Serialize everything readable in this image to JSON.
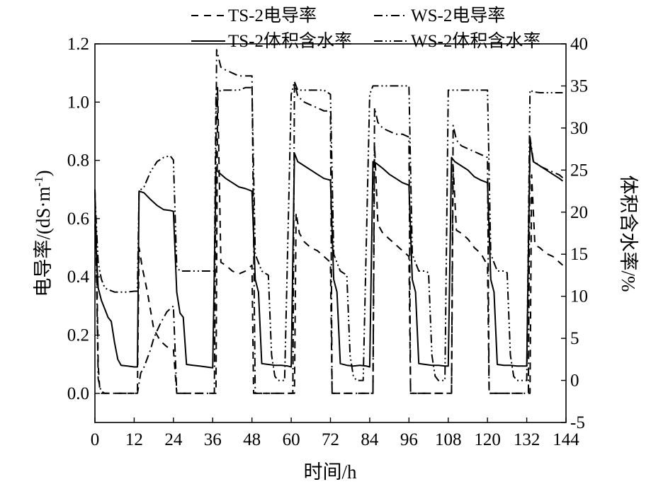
{
  "chart_data": {
    "type": "line",
    "xlabel": "时间/h",
    "ylabel_left": "电导率/(dS·m",
    "ylabel_left_sup": "-1",
    "ylabel_left_close": ")",
    "ylabel_right": "体积含水率/%",
    "xlim": [
      0,
      144
    ],
    "ylim_left": [
      -0.1,
      1.2
    ],
    "ylim_right": [
      -5,
      40
    ],
    "x_ticks": [
      0,
      12,
      24,
      36,
      48,
      60,
      72,
      84,
      96,
      108,
      120,
      132,
      144
    ],
    "x_tick_labels": [
      "0",
      "12",
      "24",
      "36",
      "48",
      "60",
      "72",
      "84",
      "96",
      "108",
      "120",
      "132",
      "144"
    ],
    "y_left_ticks": [
      0.0,
      0.2,
      0.4,
      0.6,
      0.8,
      1.0,
      1.2
    ],
    "y_left_tick_labels": [
      "0.0",
      "0.2",
      "0.4",
      "0.6",
      "0.8",
      "1.0",
      "1.2"
    ],
    "y_right_ticks": [
      -5,
      0,
      5,
      10,
      15,
      20,
      25,
      30,
      35,
      40
    ],
    "y_right_tick_labels": [
      "-5",
      "0",
      "5",
      "10",
      "15",
      "20",
      "25",
      "30",
      "35",
      "40"
    ],
    "grid": false,
    "legend_position": "top",
    "series": [
      {
        "name": "TS-2电导率",
        "style": "dashed",
        "axis": "left",
        "points": [
          [
            0,
            0.7
          ],
          [
            0.5,
            0.5
          ],
          [
            1,
            0.1
          ],
          [
            1.5,
            0.01
          ],
          [
            3,
            0.0
          ],
          [
            13,
            0.0
          ],
          [
            13.5,
            0.5
          ],
          [
            14.5,
            0.43
          ],
          [
            16,
            0.35
          ],
          [
            18,
            0.22
          ],
          [
            20,
            0.18
          ],
          [
            22,
            0.16
          ],
          [
            24,
            0.15
          ],
          [
            25,
            0.0
          ],
          [
            37,
            0.0
          ],
          [
            37.5,
            1.05
          ],
          [
            38.5,
            0.45
          ],
          [
            40,
            0.44
          ],
          [
            42,
            0.42
          ],
          [
            44,
            0.41
          ],
          [
            46,
            0.42
          ],
          [
            48,
            0.44
          ],
          [
            48.5,
            0.0
          ],
          [
            61,
            0.0
          ],
          [
            61.5,
            0.62
          ],
          [
            62.5,
            0.55
          ],
          [
            64,
            0.52
          ],
          [
            66,
            0.5
          ],
          [
            68,
            0.49
          ],
          [
            70,
            0.47
          ],
          [
            72,
            0.45
          ],
          [
            72.5,
            0.0
          ],
          [
            85,
            0.0
          ],
          [
            85.5,
            0.85
          ],
          [
            86.5,
            0.58
          ],
          [
            88,
            0.55
          ],
          [
            90,
            0.53
          ],
          [
            92,
            0.51
          ],
          [
            94,
            0.49
          ],
          [
            96,
            0.47
          ],
          [
            96.5,
            0.0
          ],
          [
            109,
            0.0
          ],
          [
            109.5,
            0.78
          ],
          [
            110.5,
            0.56
          ],
          [
            112,
            0.55
          ],
          [
            114,
            0.53
          ],
          [
            116,
            0.5
          ],
          [
            118,
            0.48
          ],
          [
            120,
            0.44
          ],
          [
            120.5,
            0.0
          ],
          [
            133,
            0.0
          ],
          [
            133.5,
            0.75
          ],
          [
            134.5,
            0.51
          ],
          [
            136,
            0.5
          ],
          [
            138,
            0.48
          ],
          [
            140,
            0.47
          ],
          [
            142,
            0.45
          ],
          [
            143,
            0.44
          ]
        ]
      },
      {
        "name": "WS-2电导率",
        "style": "dashdot",
        "axis": "left",
        "points": [
          [
            0,
            0.7
          ],
          [
            0.5,
            0.4
          ],
          [
            1,
            0.05
          ],
          [
            2,
            0.0
          ],
          [
            13,
            0.0
          ],
          [
            14,
            0.07
          ],
          [
            15,
            0.09
          ],
          [
            16,
            0.12
          ],
          [
            17,
            0.15
          ],
          [
            18,
            0.19
          ],
          [
            20,
            0.24
          ],
          [
            22,
            0.28
          ],
          [
            24,
            0.3
          ],
          [
            25,
            0.0
          ],
          [
            36.5,
            0.0
          ],
          [
            37.2,
            1.18
          ],
          [
            38.5,
            1.12
          ],
          [
            40,
            1.11
          ],
          [
            42,
            1.1
          ],
          [
            44,
            1.09
          ],
          [
            46,
            1.09
          ],
          [
            48,
            1.09
          ],
          [
            49,
            0.0
          ],
          [
            60.5,
            0.0
          ],
          [
            61,
            1.07
          ],
          [
            62,
            1.02
          ],
          [
            64,
            1.0
          ],
          [
            66,
            0.99
          ],
          [
            68,
            0.98
          ],
          [
            70,
            0.97
          ],
          [
            72,
            0.97
          ],
          [
            72.5,
            0.0
          ],
          [
            85,
            0.0
          ],
          [
            85.5,
            0.98
          ],
          [
            86.5,
            0.93
          ],
          [
            88,
            0.91
          ],
          [
            90,
            0.9
          ],
          [
            92,
            0.89
          ],
          [
            94,
            0.89
          ],
          [
            96,
            0.88
          ],
          [
            96.5,
            0.0
          ],
          [
            109,
            0.0
          ],
          [
            109.5,
            0.92
          ],
          [
            110.5,
            0.87
          ],
          [
            112,
            0.85
          ],
          [
            114,
            0.84
          ],
          [
            116,
            0.83
          ],
          [
            118,
            0.82
          ],
          [
            120,
            0.81
          ],
          [
            120.5,
            0.0
          ],
          [
            132.5,
            0.0
          ],
          [
            133,
            0.88
          ],
          [
            134,
            0.8
          ],
          [
            136,
            0.78
          ],
          [
            138,
            0.77
          ],
          [
            140,
            0.76
          ],
          [
            142,
            0.75
          ],
          [
            143,
            0.74
          ]
        ]
      },
      {
        "name": "TS-2体积含水率",
        "style": "solid",
        "axis": "right",
        "points": [
          [
            0,
            18.5
          ],
          [
            1,
            11.0
          ],
          [
            2,
            9.5
          ],
          [
            3,
            8.5
          ],
          [
            4,
            7.5
          ],
          [
            5,
            7.0
          ],
          [
            6,
            4.5
          ],
          [
            7,
            2.5
          ],
          [
            8,
            1.8
          ],
          [
            10,
            1.7
          ],
          [
            12,
            1.6
          ],
          [
            13,
            1.6
          ],
          [
            13.5,
            22.5
          ],
          [
            15,
            22.3
          ],
          [
            17,
            21.5
          ],
          [
            19,
            20.8
          ],
          [
            21,
            20.3
          ],
          [
            23,
            20.2
          ],
          [
            24,
            20.1
          ],
          [
            25,
            10.5
          ],
          [
            26,
            8.0
          ],
          [
            27,
            7.5
          ],
          [
            28,
            1.9
          ],
          [
            30,
            1.8
          ],
          [
            32,
            1.7
          ],
          [
            34,
            1.6
          ],
          [
            36,
            1.5
          ],
          [
            37,
            25.0
          ],
          [
            38.5,
            24.5
          ],
          [
            40,
            24.0
          ],
          [
            42,
            23.5
          ],
          [
            44,
            23.0
          ],
          [
            46,
            22.8
          ],
          [
            48,
            22.5
          ],
          [
            49,
            12.0
          ],
          [
            50,
            10.5
          ],
          [
            51,
            2.0
          ],
          [
            53,
            1.9
          ],
          [
            55,
            1.8
          ],
          [
            57,
            1.8
          ],
          [
            59,
            1.7
          ],
          [
            60,
            1.6
          ],
          [
            61,
            27.0
          ],
          [
            62,
            26.0
          ],
          [
            64,
            25.5
          ],
          [
            66,
            25.0
          ],
          [
            68,
            24.5
          ],
          [
            70,
            24.0
          ],
          [
            72,
            23.8
          ],
          [
            73,
            12.0
          ],
          [
            74,
            10.5
          ],
          [
            75,
            2.0
          ],
          [
            77,
            1.8
          ],
          [
            79,
            1.7
          ],
          [
            81,
            1.8
          ],
          [
            83,
            1.7
          ],
          [
            84,
            1.6
          ],
          [
            85,
            26.0
          ],
          [
            86,
            25.8
          ],
          [
            88,
            25.2
          ],
          [
            90,
            24.5
          ],
          [
            92,
            24.0
          ],
          [
            94,
            23.5
          ],
          [
            96,
            23.2
          ],
          [
            97,
            12.0
          ],
          [
            98,
            10.5
          ],
          [
            99,
            2.0
          ],
          [
            101,
            1.9
          ],
          [
            103,
            1.8
          ],
          [
            105,
            1.8
          ],
          [
            107,
            1.7
          ],
          [
            108,
            1.7
          ],
          [
            109,
            26.5
          ],
          [
            110,
            26.0
          ],
          [
            112,
            25.5
          ],
          [
            114,
            25.0
          ],
          [
            116,
            24.2
          ],
          [
            118,
            23.8
          ],
          [
            120,
            23.5
          ],
          [
            121,
            12.0
          ],
          [
            122,
            10.5
          ],
          [
            123,
            1.9
          ],
          [
            125,
            1.8
          ],
          [
            127,
            1.8
          ],
          [
            129,
            1.7
          ],
          [
            131,
            1.7
          ],
          [
            132,
            1.7
          ],
          [
            133,
            28.5
          ],
          [
            134,
            26.0
          ],
          [
            136,
            25.5
          ],
          [
            138,
            25.0
          ],
          [
            140,
            24.5
          ],
          [
            142,
            24.0
          ],
          [
            143,
            23.7
          ]
        ]
      },
      {
        "name": "WS-2体积含水率",
        "style": "dotted",
        "axis": "right",
        "points": [
          [
            0,
            22.0
          ],
          [
            1,
            14.0
          ],
          [
            2,
            12.0
          ],
          [
            3,
            11.0
          ],
          [
            4,
            10.8
          ],
          [
            6,
            10.5
          ],
          [
            8,
            10.5
          ],
          [
            10,
            10.5
          ],
          [
            12,
            10.6
          ],
          [
            13,
            10.6
          ],
          [
            13.5,
            22.5
          ],
          [
            15,
            23.0
          ],
          [
            17,
            24.8
          ],
          [
            19,
            26.0
          ],
          [
            21,
            26.5
          ],
          [
            22,
            26.6
          ],
          [
            23,
            26.7
          ],
          [
            24,
            26.2
          ],
          [
            25,
            13.5
          ],
          [
            26,
            13.0
          ],
          [
            28,
            13.0
          ],
          [
            30,
            13.0
          ],
          [
            32,
            13.0
          ],
          [
            34,
            13.0
          ],
          [
            35,
            13.0
          ],
          [
            36.5,
            13.0
          ],
          [
            37,
            34.0
          ],
          [
            38.5,
            34.5
          ],
          [
            40,
            34.5
          ],
          [
            42,
            34.5
          ],
          [
            44,
            34.5
          ],
          [
            46,
            34.8
          ],
          [
            48,
            34.8
          ],
          [
            49,
            15.0
          ],
          [
            50,
            14.0
          ],
          [
            51,
            13.0
          ],
          [
            53,
            12.5
          ],
          [
            54,
            3.0
          ],
          [
            55,
            0.5
          ],
          [
            56,
            0.0
          ],
          [
            57,
            0.0
          ],
          [
            58,
            0.0
          ],
          [
            60,
            34.0
          ],
          [
            61,
            35.5
          ],
          [
            62,
            34.5
          ],
          [
            64,
            34.5
          ],
          [
            66,
            34.5
          ],
          [
            68,
            34.5
          ],
          [
            70,
            34.5
          ],
          [
            72,
            34.0
          ],
          [
            73,
            15.0
          ],
          [
            74,
            14.0
          ],
          [
            75,
            13.0
          ],
          [
            77,
            12.5
          ],
          [
            78,
            3.0
          ],
          [
            79,
            0.5
          ],
          [
            80,
            0.0
          ],
          [
            82,
            0.0
          ],
          [
            84,
            34.0
          ],
          [
            85,
            35.0
          ],
          [
            86,
            35.0
          ],
          [
            88,
            35.0
          ],
          [
            90,
            35.0
          ],
          [
            92,
            35.0
          ],
          [
            94,
            35.0
          ],
          [
            96,
            35.0
          ],
          [
            97,
            15.0
          ],
          [
            98,
            14.0
          ],
          [
            99,
            13.0
          ],
          [
            101,
            13.0
          ],
          [
            102,
            12.8
          ],
          [
            103,
            3.0
          ],
          [
            104,
            0.5
          ],
          [
            105,
            0.0
          ],
          [
            106,
            0.0
          ],
          [
            107,
            0.0
          ],
          [
            108,
            34.5
          ],
          [
            109,
            34.5
          ],
          [
            110,
            34.5
          ],
          [
            112,
            34.5
          ],
          [
            114,
            34.5
          ],
          [
            116,
            34.5
          ],
          [
            118,
            34.5
          ],
          [
            120,
            34.5
          ],
          [
            121,
            15.0
          ],
          [
            122,
            14.0
          ],
          [
            123,
            13.0
          ],
          [
            125,
            13.0
          ],
          [
            126,
            12.8
          ],
          [
            127,
            3.0
          ],
          [
            128,
            0.5
          ],
          [
            129,
            0.0
          ],
          [
            130,
            0.0
          ],
          [
            131,
            0.0
          ],
          [
            132,
            0.0
          ],
          [
            133,
            34.5
          ],
          [
            134,
            34.3
          ],
          [
            136,
            34.2
          ],
          [
            138,
            34.2
          ],
          [
            140,
            34.2
          ],
          [
            142,
            34.2
          ],
          [
            143,
            34.2
          ]
        ]
      }
    ]
  }
}
